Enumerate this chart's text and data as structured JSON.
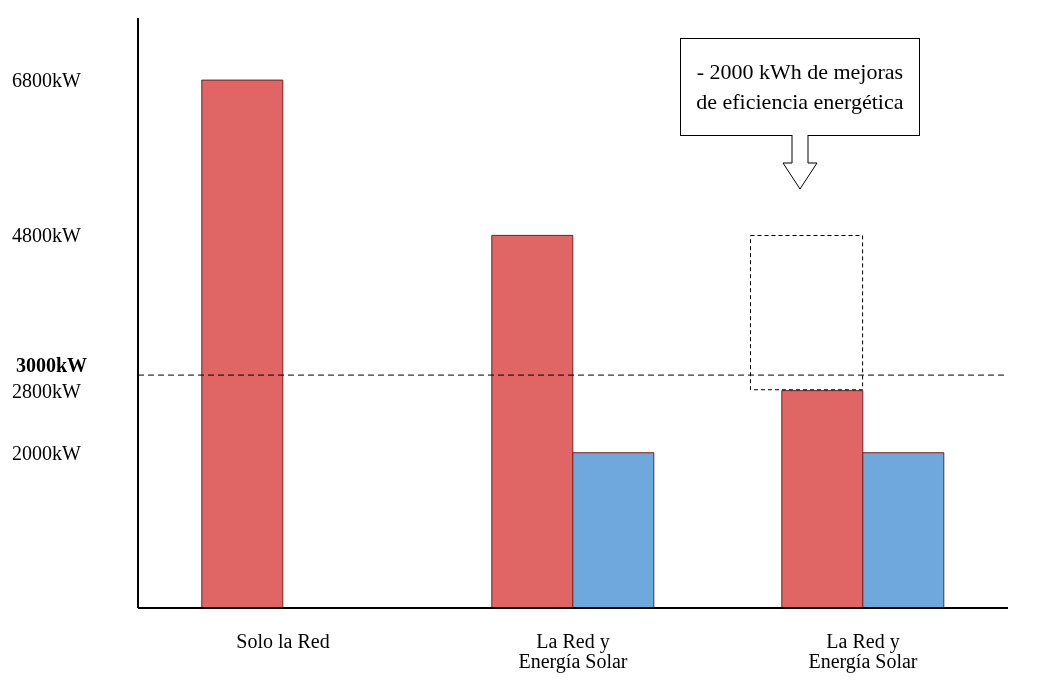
{
  "chart_data": {
    "type": "bar",
    "categories": [
      "Solo la Red",
      "La Red y Energía Solar",
      "La Red y Energía Solar"
    ],
    "series": [
      {
        "color": "#e06666",
        "values": [
          6800,
          4800,
          2800
        ]
      },
      {
        "color": "#6fa8dc",
        "values": [
          null,
          2000,
          2000
        ]
      }
    ],
    "ylim": [
      0,
      7600
    ],
    "yticks": [
      {
        "value": 2000,
        "label": "2000kW"
      },
      {
        "value": 2800,
        "label": "2800kW"
      },
      {
        "value": 4800,
        "label": "4800kW"
      },
      {
        "value": 6800,
        "label": "6800kW"
      }
    ],
    "ref_lines": [
      {
        "axis": "y",
        "value": 3000,
        "label": "3000kW",
        "color": "#000000",
        "line_style": "dashed"
      }
    ],
    "annotations": [
      "- 2000 kWh de mejoras de eficiencia energética"
    ],
    "grid": false,
    "legend": false
  }
}
